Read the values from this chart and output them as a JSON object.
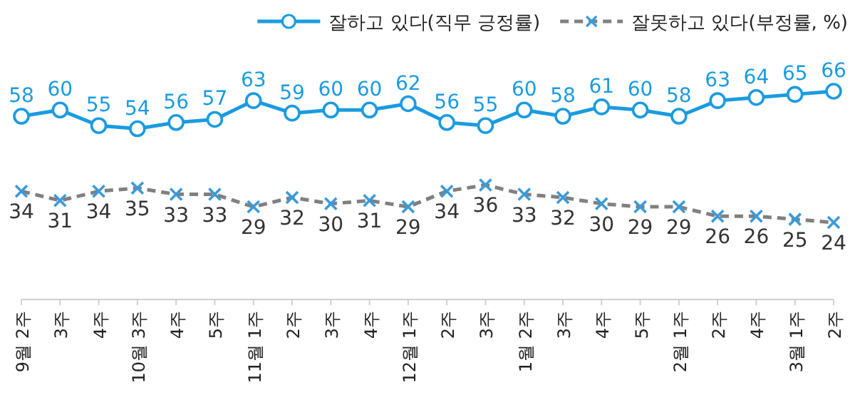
{
  "chart_data": {
    "type": "line",
    "categories": [
      "9월 2주",
      "3주",
      "4주",
      "10월 3주",
      "4주",
      "5주",
      "11월 1주",
      "2주",
      "3주",
      "4주",
      "12월 1주",
      "2주",
      "3주",
      "1월 2주",
      "3주",
      "4주",
      "5주",
      "2월 1주",
      "2주",
      "4주",
      "3월 1주",
      "2주"
    ],
    "series": [
      {
        "name": "잘하고 있다(직무 긍정률)",
        "color": "#1a9be0",
        "marker": "circle",
        "line_style": "solid",
        "values": [
          58,
          60,
          55,
          54,
          56,
          57,
          63,
          59,
          60,
          60,
          62,
          56,
          55,
          60,
          58,
          61,
          60,
          58,
          63,
          64,
          65,
          66
        ]
      },
      {
        "name": "잘못하고 있다(부정률, %)",
        "color": "#808080",
        "colors": [
          "#3a9ad9",
          "#3a9ad9",
          "#3a9ad9",
          "#3a9ad9",
          "#3a9ad9",
          "#3a9ad9",
          "#3a9ad9",
          "#3a9ad9",
          "#3a9ad9",
          "#3a9ad9",
          "#3a9ad9",
          "#3a9ad9",
          "#3a9ad9",
          "#3a9ad9",
          "#3a9ad9",
          "#3a9ad9",
          "#3a9ad9",
          "#3a9ad9",
          "#3a9ad9",
          "#3a9ad9",
          "#3a9ad9",
          "#3a9ad9"
        ],
        "marker": "cross",
        "line_style": "dashed",
        "values": [
          34,
          31,
          34,
          35,
          33,
          33,
          29,
          32,
          30,
          31,
          29,
          34,
          36,
          33,
          32,
          30,
          29,
          29,
          26,
          26,
          25,
          24
        ]
      }
    ],
    "data_labels": true,
    "legend": "top right",
    "tick_labels": "x",
    "grid": false
  }
}
